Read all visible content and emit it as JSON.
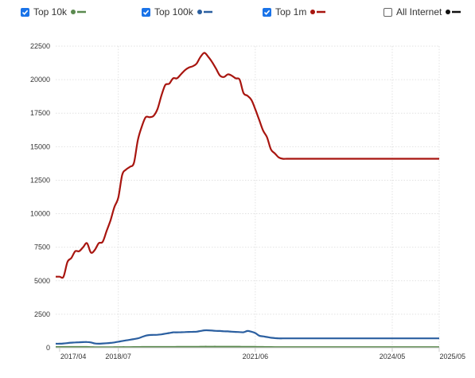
{
  "legend": [
    {
      "label": "Top 10k",
      "checked": true,
      "color": "#5b8a4f"
    },
    {
      "label": "Top 100k",
      "checked": true,
      "color": "#2b5fa0"
    },
    {
      "label": "Top 1m",
      "checked": true,
      "color": "#a8150f"
    },
    {
      "label": "All Internet",
      "checked": false,
      "color": "#111111"
    }
  ],
  "chart_data": {
    "type": "line",
    "title": "",
    "xlabel": "",
    "ylabel": "",
    "ylim": [
      0,
      22500
    ],
    "yticks": [
      0,
      2500,
      5000,
      7500,
      10000,
      12500,
      15000,
      17500,
      20000,
      22500
    ],
    "xlim": [
      "2017-03",
      "2025-05"
    ],
    "xticks": [
      "2017/04",
      "2018/07",
      "2021/06",
      "2024/05",
      "2025/05"
    ],
    "grid": true,
    "legend_position": "top",
    "x": [
      "2017-03",
      "2017-04",
      "2017-05",
      "2017-06",
      "2017-07",
      "2017-08",
      "2017-09",
      "2017-10",
      "2017-11",
      "2017-12",
      "2018-01",
      "2018-02",
      "2018-03",
      "2018-04",
      "2018-05",
      "2018-06",
      "2018-07",
      "2018-08",
      "2018-09",
      "2018-10",
      "2018-11",
      "2018-12",
      "2019-01",
      "2019-02",
      "2019-03",
      "2019-04",
      "2019-05",
      "2019-06",
      "2019-07",
      "2019-08",
      "2019-09",
      "2019-10",
      "2019-11",
      "2019-12",
      "2020-01",
      "2020-02",
      "2020-03",
      "2020-04",
      "2020-05",
      "2020-06",
      "2020-07",
      "2020-08",
      "2020-09",
      "2020-10",
      "2020-11",
      "2020-12",
      "2021-01",
      "2021-02",
      "2021-03",
      "2021-04",
      "2021-05",
      "2021-06",
      "2021-07",
      "2021-08",
      "2021-09",
      "2021-10",
      "2021-11",
      "2021-12",
      "2022-01",
      "2022-02",
      "2022-03",
      "2022-04",
      "2022-05",
      "2022-06",
      "2022-07",
      "2022-08",
      "2022-09",
      "2022-10",
      "2022-11",
      "2022-12",
      "2023-01",
      "2023-02",
      "2023-03",
      "2023-04",
      "2023-05",
      "2023-06",
      "2023-07",
      "2023-08",
      "2023-09",
      "2023-10",
      "2023-11",
      "2023-12",
      "2024-01",
      "2024-02",
      "2024-03",
      "2024-04",
      "2024-05",
      "2024-06",
      "2024-07",
      "2024-08",
      "2024-09",
      "2024-10",
      "2024-11",
      "2024-12",
      "2025-01",
      "2025-02",
      "2025-03",
      "2025-04",
      "2025-05"
    ],
    "series": [
      {
        "name": "Top 1m",
        "color": "#a8150f",
        "values": [
          5300,
          5300,
          5300,
          6400,
          6700,
          7200,
          7200,
          7500,
          7800,
          7100,
          7300,
          7800,
          7900,
          8700,
          9500,
          10500,
          11200,
          12900,
          13300,
          13500,
          13800,
          15500,
          16500,
          17200,
          17200,
          17300,
          17800,
          18800,
          19600,
          19700,
          20100,
          20100,
          20400,
          20700,
          20900,
          21000,
          21200,
          21700,
          22000,
          21700,
          21300,
          20800,
          20300,
          20200,
          20400,
          20300,
          20100,
          20000,
          19000,
          18800,
          18500,
          17800,
          17000,
          16200,
          15700,
          14800,
          14500,
          14200,
          14100,
          14100,
          14100,
          14100,
          14100,
          14100,
          14100,
          14100,
          14100,
          14100,
          14100,
          14100,
          14100,
          14100,
          14100,
          14100,
          14100,
          14100,
          14100,
          14100,
          14100,
          14100,
          14100,
          14100,
          14100,
          14100,
          14100,
          14100,
          14100,
          14100,
          14100,
          14100,
          14100,
          14100,
          14100,
          14100,
          14100,
          14100,
          14100,
          14100,
          14100
        ]
      },
      {
        "name": "Top 100k",
        "color": "#2b5fa0",
        "values": [
          300,
          300,
          320,
          350,
          380,
          400,
          410,
          420,
          430,
          400,
          320,
          300,
          320,
          340,
          360,
          400,
          450,
          500,
          550,
          600,
          650,
          700,
          800,
          900,
          950,
          960,
          970,
          1000,
          1050,
          1100,
          1150,
          1150,
          1160,
          1170,
          1180,
          1190,
          1200,
          1250,
          1300,
          1300,
          1280,
          1260,
          1250,
          1230,
          1220,
          1200,
          1180,
          1170,
          1160,
          1250,
          1200,
          1100,
          900,
          850,
          800,
          750,
          720,
          700,
          700,
          700,
          700,
          700,
          700,
          700,
          700,
          700,
          700,
          700,
          700,
          700,
          700,
          700,
          700,
          700,
          700,
          700,
          700,
          700,
          700,
          700,
          700,
          700,
          700,
          700,
          700,
          700,
          700,
          700,
          700,
          700,
          700,
          700,
          700,
          700,
          700,
          700,
          700,
          700,
          700
        ]
      },
      {
        "name": "Top 10k",
        "color": "#5b8a4f",
        "values": [
          60,
          60,
          60,
          60,
          60,
          60,
          60,
          60,
          60,
          50,
          40,
          40,
          40,
          40,
          40,
          45,
          45,
          50,
          50,
          50,
          55,
          55,
          60,
          60,
          60,
          60,
          60,
          60,
          60,
          60,
          60,
          65,
          65,
          65,
          70,
          70,
          70,
          75,
          80,
          80,
          80,
          80,
          75,
          75,
          75,
          75,
          75,
          75,
          70,
          70,
          70,
          65,
          60,
          60,
          55,
          55,
          50,
          50,
          50,
          50,
          50,
          50,
          50,
          50,
          50,
          50,
          50,
          50,
          50,
          50,
          50,
          50,
          50,
          50,
          50,
          50,
          50,
          50,
          50,
          50,
          50,
          50,
          50,
          50,
          50,
          50,
          50,
          50,
          50,
          50,
          50,
          50,
          50,
          50,
          50,
          50,
          50,
          50,
          50
        ]
      }
    ]
  }
}
